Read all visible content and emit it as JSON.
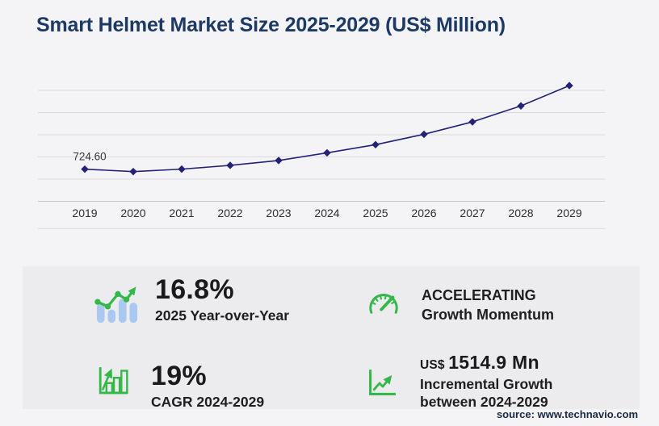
{
  "title": "Smart Helmet Market Size 2025-2029 (US$ Million)",
  "chart_data": {
    "type": "line",
    "title": "Smart Helmet Market Size 2025-2029 (US$ Million)",
    "xlabel": "",
    "ylabel": "US$ Million",
    "x": [
      "2019",
      "2020",
      "2021",
      "2022",
      "2023",
      "2024",
      "2025",
      "2026",
      "2027",
      "2028",
      "2029"
    ],
    "series": [
      {
        "name": "Smart helmet market size",
        "values": [
          724.6,
          670,
          725,
          810,
          920,
          1092.7,
          1276.2,
          1510,
          1790,
          2150,
          2607.5
        ]
      }
    ],
    "labeled_points": [
      {
        "x": "2019",
        "label": "724.60"
      }
    ],
    "ylim": [
      0,
      3000
    ],
    "gridline_values": [
      0,
      500,
      1000,
      1500,
      2000,
      2500
    ],
    "grid": true,
    "legend": false,
    "marker": "diamond",
    "line_color": "#232178"
  },
  "stats": [
    {
      "value": "16.8%",
      "label": "2025 Year-over-Year",
      "icon": "bar-chart-trend-icon"
    },
    {
      "value": "ACCELERATING",
      "label": "Growth Momentum",
      "icon": "speedometer-icon"
    },
    {
      "value": "19%",
      "label": "CAGR 2024-2029",
      "icon": "bar-growth-icon"
    },
    {
      "prefix": "US$",
      "value": "1514.9 Mn",
      "label": "Incremental Growth",
      "label2": "between 2024-2029",
      "icon": "axes-growth-icon"
    }
  ],
  "source": "source: www.technavio.com",
  "colors": {
    "page_bg": "#f4f4f6",
    "panel_bg": "#ececee",
    "title_navy": "#1d3a66",
    "line_indigo": "#232178",
    "accent_green": "#35b84a",
    "bar_blue": "#aac9f1",
    "gridline_gray": "#dadade",
    "source_navy": "#1b2846"
  }
}
